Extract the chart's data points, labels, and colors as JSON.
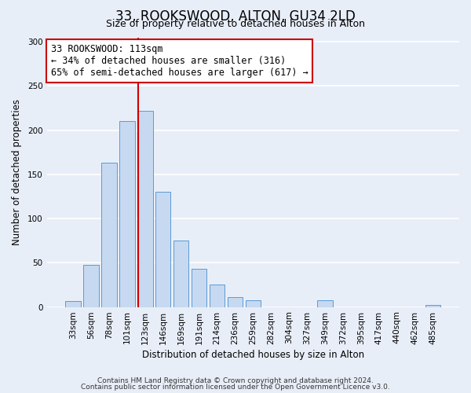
{
  "title": "33, ROOKSWOOD, ALTON, GU34 2LD",
  "subtitle": "Size of property relative to detached houses in Alton",
  "xlabel": "Distribution of detached houses by size in Alton",
  "ylabel": "Number of detached properties",
  "bar_labels": [
    "33sqm",
    "56sqm",
    "78sqm",
    "101sqm",
    "123sqm",
    "146sqm",
    "169sqm",
    "191sqm",
    "214sqm",
    "236sqm",
    "259sqm",
    "282sqm",
    "304sqm",
    "327sqm",
    "349sqm",
    "372sqm",
    "395sqm",
    "417sqm",
    "440sqm",
    "462sqm",
    "485sqm"
  ],
  "bar_values": [
    7,
    48,
    163,
    210,
    222,
    130,
    75,
    43,
    25,
    11,
    8,
    0,
    0,
    0,
    8,
    0,
    0,
    0,
    0,
    0,
    2
  ],
  "bar_color": "#c6d9f0",
  "bar_edge_color": "#5b9bd5",
  "vline_x": 3.62,
  "vline_color": "#cc0000",
  "annotation_line1": "33 ROOKSWOOD: 113sqm",
  "annotation_line2": "← 34% of detached houses are smaller (316)",
  "annotation_line3": "65% of semi-detached houses are larger (617) →",
  "annotation_box_color": "white",
  "annotation_box_edge_color": "#cc0000",
  "ylim": [
    0,
    305
  ],
  "yticks": [
    0,
    50,
    100,
    150,
    200,
    250,
    300
  ],
  "footer_line1": "Contains HM Land Registry data © Crown copyright and database right 2024.",
  "footer_line2": "Contains public sector information licensed under the Open Government Licence v3.0.",
  "background_color": "#e8eef8",
  "plot_bg_color": "#e8eef8",
  "title_fontsize": 12,
  "subtitle_fontsize": 9,
  "axis_label_fontsize": 8.5,
  "tick_fontsize": 7.5,
  "annotation_fontsize": 8.5,
  "footer_fontsize": 6.5,
  "grid_color": "#ffffff"
}
